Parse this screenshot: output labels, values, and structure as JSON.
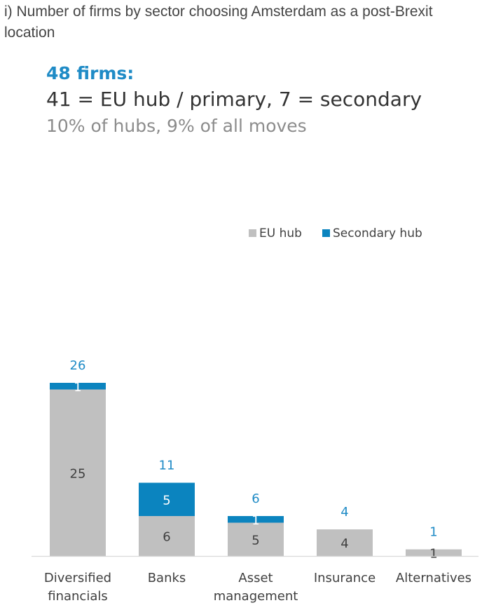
{
  "caption": "i) Number of firms by sector choosing Amsterdam as a post-Brexit location",
  "headline": {
    "line1": "48 firms:",
    "line2": "41 = EU hub / primary, 7 = secondary",
    "line3": "10% of hubs, 9% of all moves"
  },
  "colors": {
    "eu_hub": "#c0c0c0",
    "secondary": "#0b84bf",
    "total_label": "#1f8bc6",
    "text": "#404040"
  },
  "chart_data": {
    "type": "bar",
    "stacked": true,
    "categories": [
      [
        "Diversified",
        "financials"
      ],
      [
        "Banks"
      ],
      [
        "Asset",
        "management"
      ],
      [
        "Insurance"
      ],
      [
        "Alternatives"
      ]
    ],
    "series": [
      {
        "name": "EU hub",
        "values": [
          25,
          6,
          5,
          4,
          1
        ]
      },
      {
        "name": "Secondary hub",
        "values": [
          1,
          5,
          1,
          0,
          0
        ]
      }
    ],
    "totals": [
      26,
      11,
      6,
      4,
      1
    ],
    "legend": "top-right",
    "ylim": [
      0,
      26
    ],
    "grid": false
  }
}
